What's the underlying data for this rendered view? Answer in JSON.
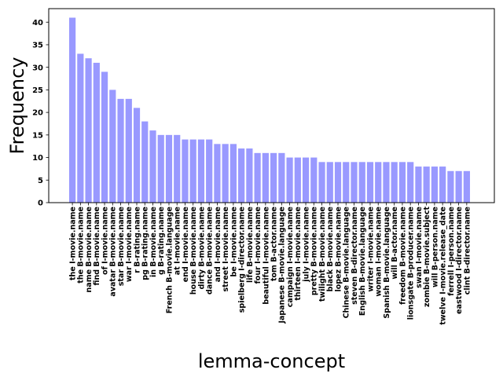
{
  "chart_data": {
    "type": "bar",
    "title": "",
    "xlabel": "lemma-concept",
    "ylabel": "Frequency",
    "ylim": [
      0,
      43
    ],
    "yticks": [
      0,
      5,
      10,
      15,
      20,
      25,
      30,
      35,
      40
    ],
    "grid": false,
    "bar_color": "#9999ff",
    "categories": [
      "the I-movie.name",
      "the B-movie.name",
      "name B-movie.name",
      "find B-movie.name",
      "of I-movie.name",
      "avatar B-movie.name",
      "star B-movie.name",
      "war I-movie.name",
      "r B-rating.name",
      "pg B-rating.name",
      "in B-movie.name",
      "g B-rating.name",
      "French B-movie.language",
      "at I-movie.name",
      "end I-movie.name",
      "house B-movie.name",
      "dirty B-movie.name",
      "dance B-movie.name",
      "and I-movie.name",
      "street I-movie.name",
      "be I-movie.name",
      "spielberg I-director.name",
      "life B-movie.name",
      "four I-movie.name",
      "beautiful I-movie.name",
      "tom B-actor.name",
      "Japanese B-movie.language",
      "campaign I-movie.name",
      "thirteen I-movie.name",
      "july I-movie.name",
      "pretty B-movie.name",
      "twilight B-movie.name",
      "black B-movie.name",
      "lopez B-movie.name",
      "Chinese B-movie.language",
      "steven B-director.name",
      "English B-movie.language",
      "writer I-movie.name",
      "woman I-movie.name",
      "Spanish B-movie.language",
      "will B-actor.name",
      "freedom B-movie.name",
      "lionsgate B-producer.name",
      "swan I-movie.name",
      "zombie B-movie.subject",
      "will B-person.name",
      "twelve I-movie.release_date",
      "ferrell I-person.name",
      "eastwood I-director.name",
      "clint B-director.name"
    ],
    "values": [
      41,
      33,
      32,
      31,
      29,
      25,
      23,
      23,
      21,
      18,
      16,
      15,
      15,
      15,
      14,
      14,
      14,
      14,
      13,
      13,
      13,
      12,
      12,
      11,
      11,
      11,
      11,
      10,
      10,
      10,
      10,
      9,
      9,
      9,
      9,
      9,
      9,
      9,
      9,
      9,
      9,
      9,
      9,
      8,
      8,
      8,
      8,
      7,
      7,
      7
    ]
  }
}
